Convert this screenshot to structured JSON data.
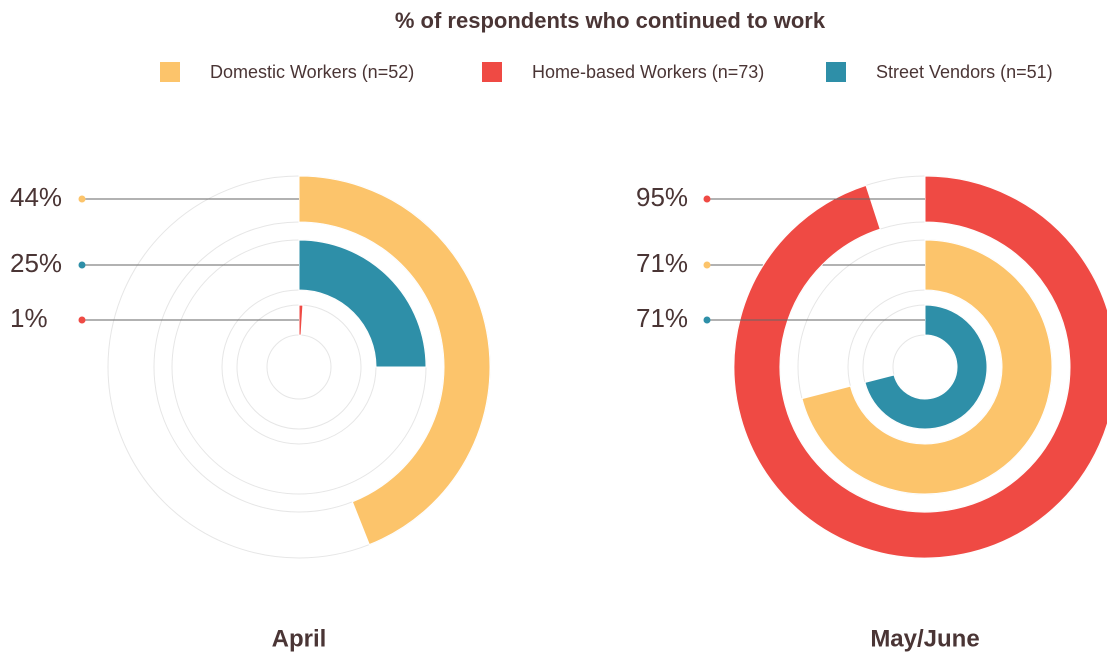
{
  "chart_data": {
    "type": "radial_bar",
    "title": "% of respondents who continued to work",
    "categories": [
      "April",
      "May/June"
    ],
    "ylim": [
      0,
      100
    ],
    "series": [
      {
        "name": "Domestic Workers (n=52)",
        "color": "#fcc46b",
        "values": [
          44,
          71
        ],
        "value_labels": [
          "44%",
          "71%"
        ]
      },
      {
        "name": "Home-based Workers (n=73)",
        "color": "#ef4a44",
        "values": [
          1,
          95
        ],
        "value_labels": [
          "1%",
          "95%"
        ]
      },
      {
        "name": "Street Vendors (n=51)",
        "color": "#2e8fa8",
        "values": [
          25,
          71
        ],
        "value_labels": [
          "25%",
          "71%"
        ]
      }
    ]
  }
}
